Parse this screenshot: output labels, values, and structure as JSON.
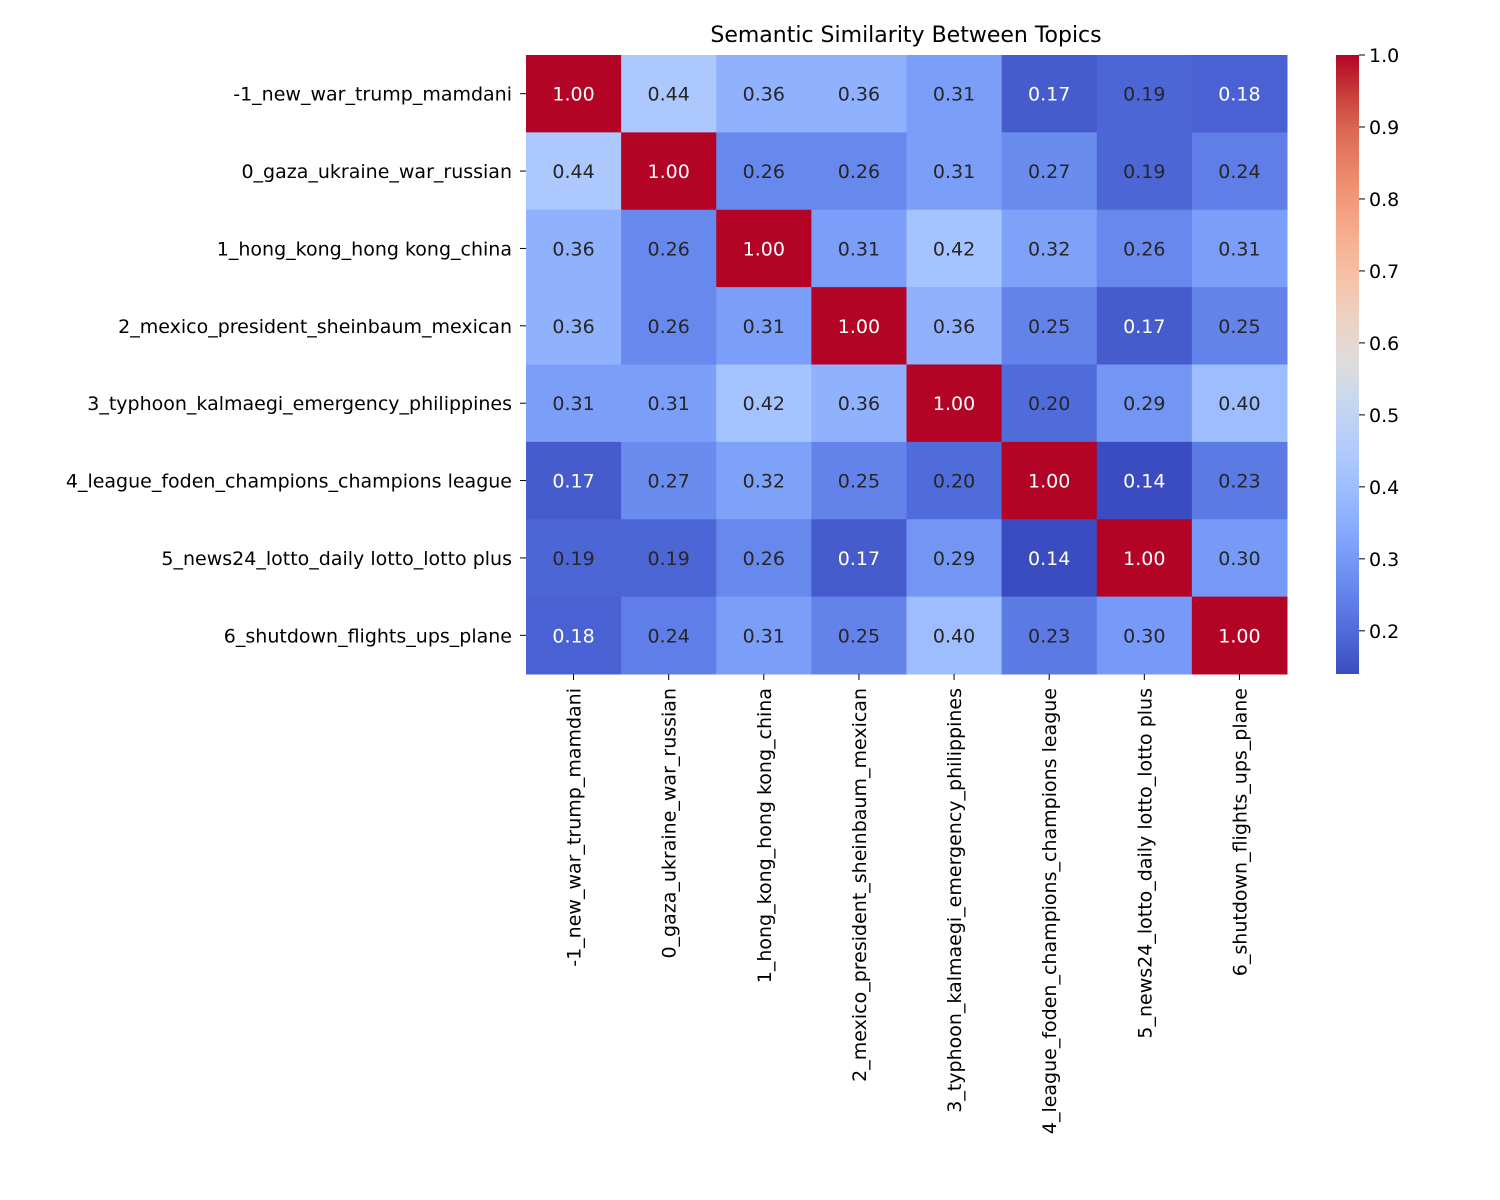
{
  "chart_data": {
    "type": "heatmap",
    "title": "Semantic Similarity Between Topics",
    "xlabel": "",
    "ylabel": "",
    "labels": [
      "-1_new_war_trump_mamdani",
      "0_gaza_ukraine_war_russian",
      "1_hong_kong_hong kong_china",
      "2_mexico_president_sheinbaum_mexican",
      "3_typhoon_kalmaegi_emergency_philippines",
      "4_league_foden_champions_champions league",
      "5_news24_lotto_daily lotto_lotto plus",
      "6_shutdown_flights_ups_plane"
    ],
    "values": [
      [
        1.0,
        0.44,
        0.36,
        0.36,
        0.31,
        0.17,
        0.19,
        0.18
      ],
      [
        0.44,
        1.0,
        0.26,
        0.26,
        0.31,
        0.27,
        0.19,
        0.24
      ],
      [
        0.36,
        0.26,
        1.0,
        0.31,
        0.42,
        0.32,
        0.26,
        0.31
      ],
      [
        0.36,
        0.26,
        0.31,
        1.0,
        0.36,
        0.25,
        0.17,
        0.25
      ],
      [
        0.31,
        0.31,
        0.42,
        0.36,
        1.0,
        0.2,
        0.29,
        0.4
      ],
      [
        0.17,
        0.27,
        0.32,
        0.25,
        0.2,
        1.0,
        0.14,
        0.23
      ],
      [
        0.19,
        0.19,
        0.26,
        0.17,
        0.29,
        0.14,
        1.0,
        0.3
      ],
      [
        0.18,
        0.24,
        0.31,
        0.25,
        0.4,
        0.23,
        0.3,
        1.0
      ]
    ],
    "colormap": "coolwarm",
    "color_range": [
      0.14,
      1.0
    ],
    "colorbar_ticks": [
      "0.2",
      "0.3",
      "0.4",
      "0.5",
      "0.6",
      "0.7",
      "0.8",
      "0.9",
      "1.0"
    ],
    "annotation_format": "0.00",
    "grid": false,
    "legend": "colorbar-right"
  }
}
